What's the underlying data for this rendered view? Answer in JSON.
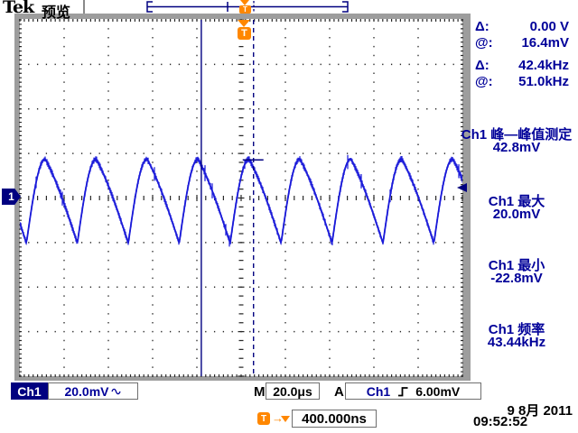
{
  "header": {
    "logo": "Tek",
    "mode": "预览"
  },
  "cursor_readout": {
    "rows": [
      {
        "label": "Δ:",
        "value": "0.00 V"
      },
      {
        "label": "@:",
        "value": "16.4mV"
      },
      {
        "label": "Δ:",
        "value": "42.4kHz"
      },
      {
        "label": "@:",
        "value": "51.0kHz"
      }
    ]
  },
  "measurements": [
    {
      "title": "Ch1 峰—峰值测定",
      "value": "42.8mV"
    },
    {
      "title": "Ch1 最大",
      "value": "20.0mV"
    },
    {
      "title": "Ch1 最小",
      "value": "-22.8mV"
    },
    {
      "title": "Ch1 频率",
      "value": "43.44kHz"
    }
  ],
  "channel_badge": "1",
  "trigger_marker": "T",
  "status_bar": {
    "channel_label": "Ch1",
    "channel_scale": "20.0mV",
    "timebase_label": "M",
    "timebase_value": "20.0μs",
    "acquisition_label": "A",
    "trigger_source": "Ch1",
    "trigger_level": "6.00mV",
    "delay_marker": "T",
    "delay_value": "400.000ns",
    "date": "9 8月 2011",
    "time": "09:52:52"
  },
  "icons": {
    "right_arrow": "→",
    "coupling": "sine-wave-icon",
    "slope": "rising-edge-icon",
    "trigger_position": "down-triangle-icon"
  },
  "colors": {
    "trace": "#1a1ad9",
    "navy_text": "#000099",
    "marker_navy": "#000080",
    "orange": "#ff8700",
    "frame_gray": "#9d9d9d",
    "grid_dot": "#2a2a2a"
  },
  "chart_data": {
    "type": "line",
    "title": "Ch1 oscilloscope trace",
    "waveform_shape": "noisy sawtooth: fast rise (~37% of period) with rounded peak, near-linear fall to sharp trough",
    "volts_per_div_mV": 20.0,
    "time_per_div_us": 20.0,
    "horizontal_divisions": 10,
    "vertical_divisions": 8,
    "frequency_kHz": 43.44,
    "period_us": 23.0,
    "peak_to_peak_mV": 42.8,
    "max_mV": 20.0,
    "min_mV": -22.8,
    "noise_mV": 2.5,
    "rise_fraction": 0.37,
    "ground_reference_div": 0.0,
    "cursor_solid_x_div": -0.9,
    "cursor_dashed_x_div": 0.28,
    "visible_cycles": 8.7
  }
}
